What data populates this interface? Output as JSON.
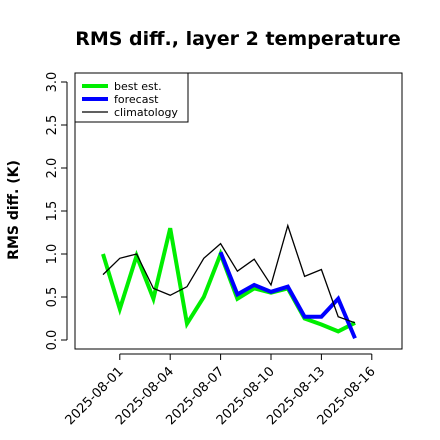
{
  "chart_data": {
    "type": "line",
    "title": "RMS diff., layer 2 temperature",
    "xlabel": "",
    "ylabel": "RMS diff. (K)",
    "x": [
      "2025-07-31",
      "2025-08-01",
      "2025-08-02",
      "2025-08-03",
      "2025-08-04",
      "2025-08-05",
      "2025-08-06",
      "2025-08-07",
      "2025-08-08",
      "2025-08-09",
      "2025-08-10",
      "2025-08-11",
      "2025-08-12",
      "2025-08-13",
      "2025-08-14",
      "2025-08-15"
    ],
    "xticks": [
      "2025-08-01",
      "2025-08-04",
      "2025-08-07",
      "2025-08-10",
      "2025-08-13",
      "2025-08-16"
    ],
    "xtick_colors": [
      "#000000",
      "#000000",
      "#228B22",
      "#000000",
      "#000000",
      "#000000"
    ],
    "ylim": [
      -0.05,
      3.15
    ],
    "yticks": [
      "0.0",
      "0.5",
      "1.0",
      "1.5",
      "2.0",
      "2.5",
      "3.0"
    ],
    "grid": false,
    "legend_position": "top-left",
    "series": [
      {
        "name": "best est.",
        "color": "#00ee00",
        "values": [
          1.0,
          0.36,
          0.98,
          0.48,
          1.3,
          0.19,
          0.5,
          1.0,
          0.48,
          0.6,
          0.55,
          0.6,
          0.25,
          0.18,
          0.1,
          0.2
        ]
      },
      {
        "name": "forecast",
        "color": "#0000ff",
        "values": [
          null,
          null,
          null,
          null,
          null,
          null,
          null,
          1.02,
          0.53,
          0.64,
          0.56,
          0.62,
          0.27,
          0.27,
          0.48,
          0.02
        ]
      },
      {
        "name": "climatology",
        "color": "#000000",
        "values": [
          0.76,
          0.95,
          1.0,
          0.6,
          0.52,
          0.62,
          0.95,
          1.12,
          0.8,
          0.94,
          0.64,
          1.33,
          0.74,
          0.82,
          0.27,
          0.2
        ]
      }
    ]
  }
}
